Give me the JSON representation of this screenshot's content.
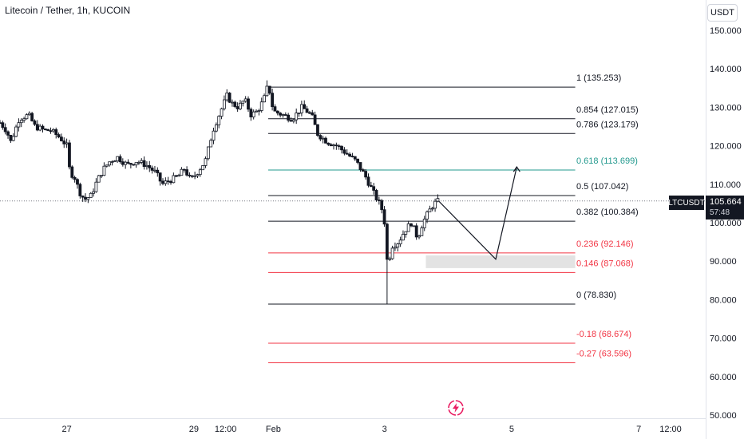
{
  "header": {
    "title": "Litecoin / Tether, 1h, KUCOIN"
  },
  "price_scale": {
    "currency": "USDT"
  },
  "last_price": {
    "ticker": "LTCUSDT",
    "value": "105.664",
    "countdown": "57:48"
  },
  "colors": {
    "black_level": "#131722",
    "teal_level": "#22998e",
    "red_level": "#f23645",
    "projection_box": "#e3e3e3",
    "price_line": "#787b86"
  },
  "icons": {
    "logo": "lightning-logo-icon"
  },
  "chart_data": {
    "type": "candlestick",
    "title": "Litecoin / Tether, 1h, KUCOIN",
    "y_ticks": [
      "150.000",
      "140.000",
      "130.000",
      "120.000",
      "110.000",
      "100.000",
      "90.000",
      "80.000",
      "70.000",
      "60.000",
      "50.000"
    ],
    "ylim": [
      50,
      154
    ],
    "x_ticks": [
      {
        "label": "27",
        "t": 0
      },
      {
        "label": "29",
        "t": 2
      },
      {
        "label": "12:00",
        "t": 2.5
      },
      {
        "label": "Feb",
        "t": 3.25
      },
      {
        "label": "3",
        "t": 5
      },
      {
        "label": "5",
        "t": 7
      },
      {
        "label": "7",
        "t": 9
      },
      {
        "label": "12:00",
        "t": 9.5
      }
    ],
    "xlim": [
      -1.05,
      9.5
    ],
    "price_path": [
      [
        -1.05,
        126
      ],
      [
        -0.95,
        124
      ],
      [
        -0.88,
        121
      ],
      [
        -0.75,
        127
      ],
      [
        -0.6,
        128
      ],
      [
        -0.5,
        125
      ],
      [
        -0.35,
        124
      ],
      [
        -0.25,
        124
      ],
      [
        -0.1,
        122
      ],
      [
        0,
        120
      ],
      [
        0.05,
        113
      ],
      [
        0.12,
        112
      ],
      [
        0.2,
        108
      ],
      [
        0.28,
        106
      ],
      [
        0.38,
        107
      ],
      [
        0.48,
        111
      ],
      [
        0.58,
        114
      ],
      [
        0.68,
        116
      ],
      [
        0.8,
        117
      ],
      [
        0.95,
        115
      ],
      [
        1.1,
        116
      ],
      [
        1.25,
        115
      ],
      [
        1.4,
        113
      ],
      [
        1.5,
        110
      ],
      [
        1.62,
        111
      ],
      [
        1.75,
        112
      ],
      [
        1.85,
        114
      ],
      [
        1.95,
        111
      ],
      [
        2.05,
        113
      ],
      [
        2.18,
        116
      ],
      [
        2.3,
        124
      ],
      [
        2.42,
        129
      ],
      [
        2.52,
        133
      ],
      [
        2.6,
        131
      ],
      [
        2.7,
        130
      ],
      [
        2.8,
        132
      ],
      [
        2.9,
        128
      ],
      [
        3.0,
        129
      ],
      [
        3.1,
        132
      ],
      [
        3.17,
        136
      ],
      [
        3.25,
        129
      ],
      [
        3.4,
        128
      ],
      [
        3.55,
        127
      ],
      [
        3.7,
        130
      ],
      [
        3.85,
        128
      ],
      [
        3.95,
        123
      ],
      [
        4.1,
        121
      ],
      [
        4.25,
        120
      ],
      [
        4.4,
        118
      ],
      [
        4.55,
        116
      ],
      [
        4.7,
        112
      ],
      [
        4.85,
        107
      ],
      [
        4.95,
        104
      ],
      [
        5.0,
        100
      ],
      [
        5.02,
        93
      ],
      [
        5.05,
        89
      ],
      [
        5.12,
        94
      ],
      [
        5.22,
        95
      ],
      [
        5.32,
        98
      ],
      [
        5.42,
        100
      ],
      [
        5.52,
        96
      ],
      [
        5.6,
        100
      ],
      [
        5.7,
        103
      ],
      [
        5.78,
        105
      ],
      [
        5.85,
        105.664
      ]
    ],
    "wick_low": {
      "t": 5.04,
      "value": 78.83
    },
    "wick_high": {
      "t": 3.17,
      "value": 137
    },
    "fib_levels": [
      {
        "ratio": "1",
        "value": 135.253,
        "label": "1 (135.253)",
        "color": "black"
      },
      {
        "ratio": "0.854",
        "value": 127.015,
        "label": "0.854 (127.015)",
        "color": "black"
      },
      {
        "ratio": "0.786",
        "value": 123.179,
        "label": "0.786 (123.179)",
        "color": "black"
      },
      {
        "ratio": "0.618",
        "value": 113.699,
        "label": "0.618 (113.699)",
        "color": "teal"
      },
      {
        "ratio": "0.5",
        "value": 107.042,
        "label": "0.5 (107.042)",
        "color": "black"
      },
      {
        "ratio": "0.382",
        "value": 100.384,
        "label": "0.382 (100.384)",
        "color": "black"
      },
      {
        "ratio": "0.236",
        "value": 92.146,
        "label": "0.236 (92.146)",
        "color": "red"
      },
      {
        "ratio": "0.146",
        "value": 87.068,
        "label": "0.146 (87.068)",
        "color": "red"
      },
      {
        "ratio": "0",
        "value": 78.83,
        "label": "0 (78.830)",
        "color": "black"
      },
      {
        "ratio": "-0.18",
        "value": 68.674,
        "label": "-0.18 (68.674)",
        "color": "red"
      },
      {
        "ratio": "-0.27",
        "value": 63.596,
        "label": "-0.27 (63.596)",
        "color": "red"
      }
    ],
    "fib_range": {
      "t_start": 3.17,
      "t_end": 8.0
    },
    "projection": [
      [
        5.85,
        105.664
      ],
      [
        6.75,
        90.5
      ],
      [
        7.08,
        114.5
      ]
    ],
    "projection_box": {
      "t_start": 5.65,
      "t_end": 8.0,
      "y_top": 91.5,
      "y_bottom": 88.2
    },
    "last_price": 105.664
  }
}
